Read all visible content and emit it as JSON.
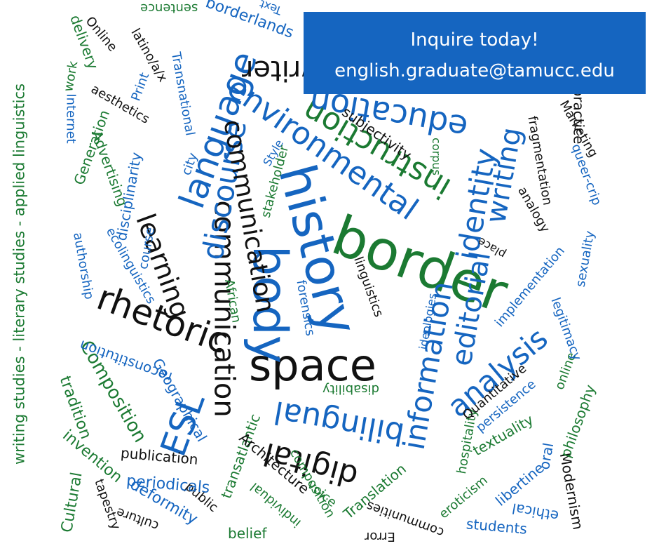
{
  "banner": {
    "line1": "Inquire today!",
    "email": "english.graduate@tamucc.edu"
  },
  "side_text": "writing studies  -  literary studies  -  applied linguistics",
  "words": [
    "border",
    "history",
    "space",
    "body",
    "rhetoric",
    "communication",
    "language",
    "environmental",
    "instruction",
    "education",
    "discourse",
    "learning",
    "identity",
    "editorial",
    "writing",
    "analysis",
    "information",
    "bilingual",
    "digital",
    "ESL",
    "Composition",
    "Geographical",
    "reconstitution",
    "tradition",
    "invention",
    "Cultural",
    "tapestry",
    "culture",
    "deformity",
    "public",
    "periodicals",
    "publication",
    "transatlantic",
    "Architecture",
    "composition",
    "voice",
    "individual",
    "belief",
    "Translation",
    "communities",
    "Error",
    "eroticism",
    "students",
    "libertine",
    "ethical",
    "Modernism",
    "oral",
    "philosophy",
    "textuality",
    "hospitality",
    "persistence",
    "Quantitative",
    "online",
    "legitimacy",
    "implementation",
    "sexuality",
    "analogy",
    "fragmentation",
    "queer-crip",
    "Marketing",
    "subjectivity",
    "corpus",
    "Style",
    "stakeholder",
    "African",
    "forensics",
    "linguistics",
    "ideologies",
    "disability",
    "place",
    "Advertising",
    "Generation",
    "Internet",
    "Print",
    "Transnational",
    "aesthetics",
    "latino/a/x",
    "Online",
    "delivery",
    "work",
    "borderlands",
    "sentence",
    "Text",
    "city",
    "disciplinarity",
    "course",
    "authorship",
    "ecolinguistics",
    "writer",
    "practice"
  ]
}
